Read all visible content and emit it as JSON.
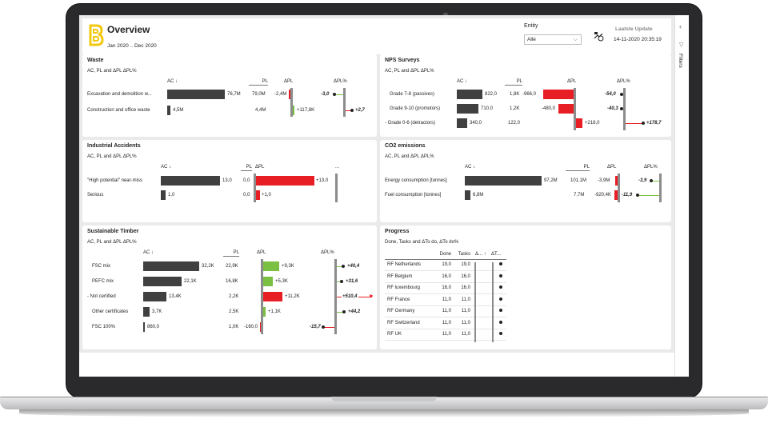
{
  "header": {
    "title": "Overview",
    "period": "Jan 2020 .. Dec 2020",
    "entity_label": "Entity",
    "entity_value": "Alle",
    "update_title": "Laatste Update",
    "update_value": "14-11-2020 20:35:19"
  },
  "filters_label": "Filters",
  "colors": {
    "accent": "#f2c811",
    "negative": "#e81e25",
    "positive": "#7ac043",
    "bar": "#404040"
  },
  "waste": {
    "title": "Waste",
    "subtitle": "AC, PL and ΔPL ΔPL%",
    "h_ac": "AC ↓",
    "h_pl": "PL",
    "h_dpl": "ΔPL",
    "h_dplp": "ΔPL%",
    "rows": [
      {
        "label": "Excavation and demolition w...",
        "ac": "76,7M",
        "pl": "79,0M",
        "dpl": "-2,4M",
        "dplp": "-3,0"
      },
      {
        "label": "Construction and office waste",
        "ac": "4,5M",
        "pl": "4,4M",
        "dpl": "+117,8K",
        "dplp": "+2,7"
      }
    ]
  },
  "nps": {
    "title": "NPS Surveys",
    "subtitle": "AC, PL and ΔPL ΔPL%",
    "h_ac": "AC ↓",
    "h_pl": "PL",
    "h_dpl": "ΔPL",
    "h_dplp": "ΔPL%",
    "rows": [
      {
        "label": "Grade 7-8 (passives)",
        "ac": "822,0",
        "pl": "1,8K",
        "dpl": "-966,0",
        "dplp": "-54,0"
      },
      {
        "label": "Grade 9-10 (promotors)",
        "ac": "710,0",
        "pl": "1,2K",
        "dpl": "-480,0",
        "dplp": "-40,3"
      },
      {
        "label": "-  Grade 0-6 (detractors)",
        "ac": "340,0",
        "pl": "122,0",
        "dpl": "+218,0",
        "dplp": "+178,7"
      }
    ]
  },
  "accidents": {
    "title": "Industrial Accidents",
    "subtitle": "AC, PL and ΔPL ΔPL%",
    "h_ac": "AC ↓",
    "h_pl": "PL",
    "h_dpl": "ΔPL",
    "h_dplp": "...",
    "rows": [
      {
        "label": "\"High potential\" near-miss",
        "ac": "13,0",
        "pl": "0,0",
        "dpl": "+13,0"
      },
      {
        "label": "Serious",
        "ac": "1,0",
        "pl": "0,0",
        "dpl": "+1,0"
      }
    ]
  },
  "co2": {
    "title": "CO2 emissions",
    "subtitle": "AC, PL and ΔPL ΔPL%",
    "h_ac": "AC ↓",
    "h_pl": "PL",
    "h_dpl": "ΔPL",
    "h_dplp": "ΔPL%",
    "rows": [
      {
        "label": "Energy consumption [tonnes]",
        "ac": "97,2M",
        "pl": "101,1M",
        "dpl": "-3,9M",
        "dplp": "-3,9"
      },
      {
        "label": "Fuel consumption [tonnes]",
        "ac": "6,8M",
        "pl": "7,7M",
        "dpl": "-920,4K",
        "dplp": "-11,9"
      }
    ]
  },
  "timber": {
    "title": "Sustainable Timber",
    "subtitle": "AC, PL and ΔPL ΔPL%",
    "h_ac": "AC ↓",
    "h_pl": "PL",
    "h_dpl": "ΔPL",
    "h_dplp": "ΔPL%",
    "rows": [
      {
        "label": "FSC mix",
        "ac": "32,2K",
        "pl": "22,9K",
        "dpl": "+9,3K",
        "dplp": "+40,4"
      },
      {
        "label": "PEFC mix",
        "ac": "22,1K",
        "pl": "16,8K",
        "dpl": "+5,3K",
        "dplp": "+31,6"
      },
      {
        "label": "-  Not certified",
        "ac": "13,4K",
        "pl": "2,2K",
        "dpl": "+11,2K",
        "dplp": "+510,4"
      },
      {
        "label": "Other certificates",
        "ac": "3,7K",
        "pl": "2,5K",
        "dpl": "+1,1K",
        "dplp": "+44,2"
      },
      {
        "label": "FSC 100%",
        "ac": "860,0",
        "pl": "1,0K",
        "dpl": "-160,0",
        "dplp": "-15,7"
      }
    ]
  },
  "progress": {
    "title": "Progress",
    "subtitle": "Done, Tasks and ΔTo do, ΔTo do%",
    "h_name": "",
    "h_done": "Done",
    "h_tasks": "Tasks",
    "h_d1": "Δ... ↑",
    "h_d2": "ΔT...",
    "rows": [
      {
        "label": "RF Netherlands",
        "done": "19,0",
        "tasks": "19,0"
      },
      {
        "label": "RF Belgium",
        "done": "16,0",
        "tasks": "16,0"
      },
      {
        "label": "RF luxembourg",
        "done": "16,0",
        "tasks": "16,0"
      },
      {
        "label": "RF France",
        "done": "11,0",
        "tasks": "11,0"
      },
      {
        "label": "RF Germany",
        "done": "11,0",
        "tasks": "11,0"
      },
      {
        "label": "RF Switzerland",
        "done": "11,0",
        "tasks": "11,0"
      },
      {
        "label": "RF UK",
        "done": "11,0",
        "tasks": "11,0"
      }
    ]
  }
}
